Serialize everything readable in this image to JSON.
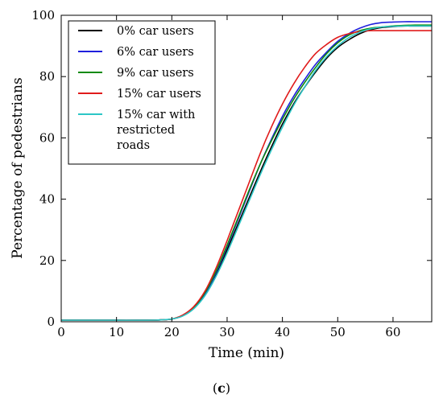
{
  "caption": {
    "open": "(",
    "letter": "c",
    "close": ")"
  },
  "chart_data": {
    "type": "line",
    "title": "",
    "xlabel": "Time (min)",
    "ylabel": "Percentage of pedestrians",
    "xlim": [
      0,
      67
    ],
    "ylim": [
      0,
      100
    ],
    "xticks": [
      0,
      10,
      20,
      30,
      40,
      50,
      60
    ],
    "yticks": [
      0,
      20,
      40,
      60,
      80,
      100
    ],
    "grid": false,
    "legend_position": "top-left",
    "series": [
      {
        "name": "0% car users",
        "color": "#000000",
        "x": [
          0,
          5,
          10,
          15,
          18,
          20,
          22,
          24,
          26,
          28,
          30,
          32,
          34,
          36,
          38,
          40,
          42,
          44,
          46,
          48,
          50,
          52,
          54,
          56,
          58,
          60,
          62,
          64,
          67
        ],
        "y": [
          0.5,
          0.5,
          0.5,
          0.5,
          0.6,
          0.9,
          2.0,
          4.5,
          9.0,
          15.5,
          23.5,
          32.0,
          40.5,
          49.0,
          57.0,
          64.5,
          71.0,
          76.5,
          81.5,
          86.0,
          89.5,
          92.0,
          94.0,
          95.3,
          96.0,
          96.3,
          96.5,
          96.5,
          96.5
        ]
      },
      {
        "name": "6% car users",
        "color": "#1f1fdd",
        "x": [
          0,
          5,
          10,
          15,
          18,
          20,
          22,
          24,
          26,
          28,
          30,
          32,
          34,
          36,
          38,
          40,
          42,
          44,
          46,
          48,
          50,
          52,
          54,
          56,
          58,
          60,
          62,
          64,
          67
        ],
        "y": [
          0.5,
          0.5,
          0.5,
          0.5,
          0.6,
          0.9,
          2.0,
          4.5,
          9.2,
          16.0,
          24.5,
          33.5,
          42.5,
          51.5,
          59.5,
          67.0,
          73.5,
          79.0,
          84.0,
          88.0,
          91.5,
          94.0,
          95.8,
          97.0,
          97.6,
          97.8,
          97.9,
          97.9,
          97.9
        ]
      },
      {
        "name": "9% car users",
        "color": "#0c8a0c",
        "x": [
          0,
          5,
          10,
          15,
          18,
          20,
          22,
          24,
          26,
          28,
          30,
          32,
          34,
          36,
          38,
          40,
          42,
          44,
          46,
          48,
          50,
          52,
          54,
          56,
          58,
          60,
          62,
          64,
          67
        ],
        "y": [
          0.5,
          0.5,
          0.5,
          0.5,
          0.6,
          0.9,
          2.1,
          4.8,
          9.5,
          16.5,
          25.0,
          34.0,
          43.0,
          51.5,
          59.0,
          66.0,
          72.5,
          78.0,
          83.0,
          87.5,
          91.0,
          93.5,
          95.0,
          95.8,
          96.2,
          96.5,
          96.7,
          96.8,
          96.8
        ]
      },
      {
        "name": "15% car users",
        "color": "#e01b1b",
        "x": [
          0,
          5,
          10,
          15,
          18,
          20,
          22,
          24,
          26,
          28,
          30,
          32,
          34,
          36,
          38,
          40,
          42,
          44,
          46,
          48,
          50,
          52,
          54,
          56,
          58,
          60,
          62,
          64,
          67
        ],
        "y": [
          0.5,
          0.5,
          0.5,
          0.5,
          0.6,
          0.9,
          2.2,
          5.0,
          10.0,
          17.5,
          26.5,
          36.0,
          45.5,
          55.0,
          63.5,
          71.0,
          77.5,
          83.0,
          87.5,
          90.5,
          92.8,
          94.0,
          94.7,
          95.0,
          95.0,
          95.0,
          95.0,
          95.0,
          95.0
        ]
      },
      {
        "name": "15% car with restricted roads",
        "color": "#2cc6c6",
        "x": [
          0,
          5,
          10,
          15,
          18,
          20,
          22,
          24,
          26,
          28,
          30,
          32,
          34,
          36,
          38,
          40,
          42,
          44,
          46,
          48,
          50,
          52,
          54,
          56,
          58,
          60,
          62,
          64,
          67
        ],
        "y": [
          0.5,
          0.5,
          0.5,
          0.5,
          0.6,
          0.9,
          1.9,
          4.3,
          8.5,
          14.8,
          22.5,
          31.0,
          39.5,
          48.0,
          56.0,
          63.5,
          70.5,
          76.5,
          82.0,
          86.5,
          90.0,
          92.7,
          94.5,
          95.6,
          96.2,
          96.4,
          96.5,
          96.5,
          96.5
        ]
      }
    ]
  },
  "legend": {
    "labels": [
      [
        "0% car users"
      ],
      [
        "6% car users"
      ],
      [
        "9% car users"
      ],
      [
        "15% car users"
      ],
      [
        "15% car with",
        "restricted",
        "roads"
      ]
    ]
  }
}
